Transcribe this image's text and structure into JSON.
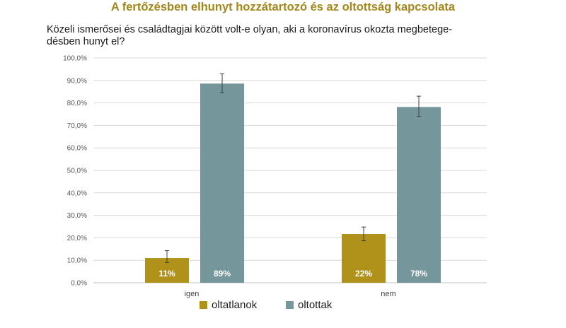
{
  "title": "A fertőzésben elhunyt hozzátartozó és az oltottság kapcsolata",
  "subtitle": "Közeli ismerősei és családtagjai között volt-e olyan, aki a koronavírus okozta megbetege-désben hunyt el?",
  "subtitle_lines": [
    "Közeli ismerősei és családtagjai között volt-e olyan, aki a koronavírus okozta megbetege-",
    "désben hunyt el?"
  ],
  "chart_data": {
    "type": "bar",
    "title": "",
    "xlabel": "",
    "ylabel": "",
    "categories": [
      "igen",
      "nem"
    ],
    "ylim": [
      0,
      100
    ],
    "yticks": [
      0,
      10,
      20,
      30,
      40,
      50,
      60,
      70,
      80,
      90,
      100
    ],
    "ytick_labels": [
      "0,0%",
      "10,0%",
      "20,0%",
      "30,0%",
      "40,0%",
      "50,0%",
      "60,0%",
      "70,0%",
      "80,0%",
      "90,0%",
      "100,0%"
    ],
    "grid": true,
    "legend_position": "bottom",
    "series": [
      {
        "name": "oltatlanok",
        "color": "#b0921a",
        "values": [
          11,
          21.7
        ],
        "error_low": [
          9,
          18.7
        ],
        "error_high": [
          14.3,
          24.8
        ],
        "labels": [
          "11%",
          "22%"
        ]
      },
      {
        "name": "oltottak",
        "color": "#75969a",
        "values": [
          88.6,
          78.2
        ],
        "error_low": [
          84.6,
          74
        ],
        "error_high": [
          93,
          83
        ],
        "labels": [
          "89%",
          "78%"
        ]
      }
    ]
  }
}
